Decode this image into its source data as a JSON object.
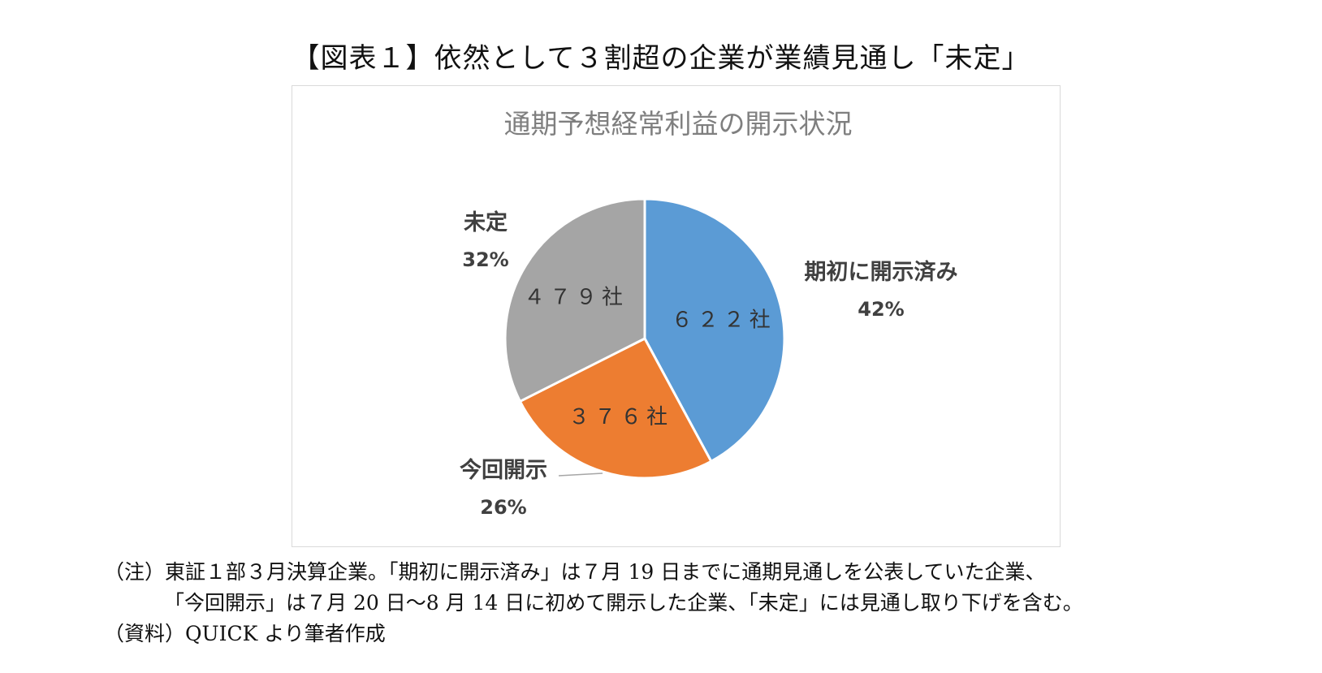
{
  "figure_title": "【図表１】依然として３割超の企業が業績見通し「未定」",
  "chart_data": {
    "type": "pie",
    "title": "通期予想経常利益の開示状況",
    "slices": [
      {
        "label": "期初に開示済み",
        "percent_label": "42%",
        "count_label": "６２２社",
        "value": 622,
        "color": "#5b9bd5"
      },
      {
        "label": "今回開示",
        "percent_label": "26%",
        "count_label": "３７６社",
        "value": 376,
        "color": "#ed7d31"
      },
      {
        "label": "未定",
        "percent_label": "32%",
        "count_label": "４７９社",
        "value": 479,
        "color": "#a5a5a5"
      }
    ]
  },
  "notes": {
    "line1": "（注）東証１部３月決算企業。「期初に開示済み」は７月 19 日までに通期見通しを公表していた企業、",
    "line2": "「今回開示」は７月 20 日〜8 月 14 日に初めて開示した企業、「未定」には見通し取り下げを含む。",
    "line3": "（資料）QUICK より筆者作成"
  }
}
